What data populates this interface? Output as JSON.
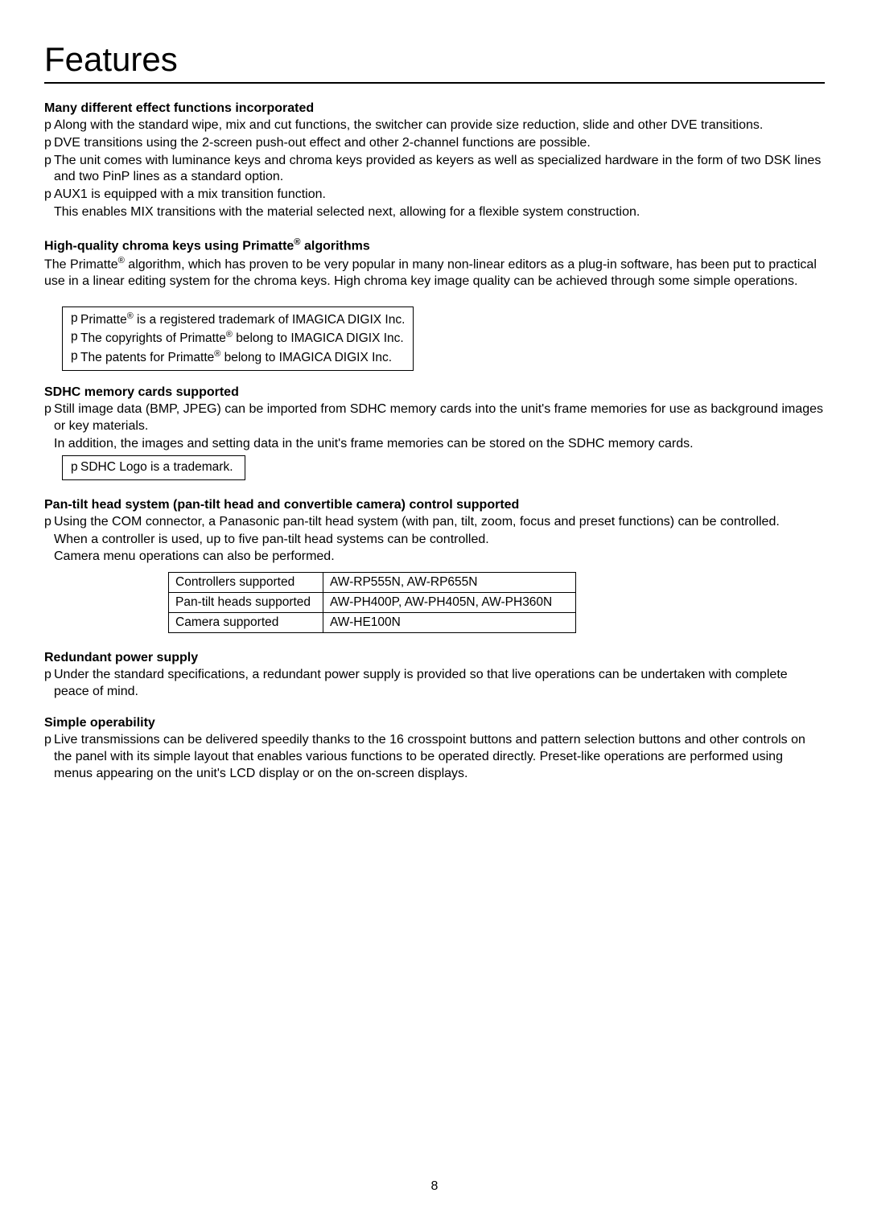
{
  "title": "Features",
  "pageNumber": "8",
  "sections": {
    "effects": {
      "heading": "Many different effect functions incorporated",
      "b1": "Along with the standard wipe, mix and cut functions, the switcher can provide size reduction, slide and other DVE transitions.",
      "b2": "DVE transitions using the 2-screen push-out effect and other 2-channel functions are possible.",
      "b3": "The unit comes with luminance keys and chroma keys provided as keyers as well as specialized hardware in the form of two DSK lines and two PinP lines as a standard option.",
      "b4": "AUX1 is equipped with a mix transition function.",
      "b4cont": "This enables MIX transitions with the material selected next, allowing for a flexible system construction."
    },
    "chroma": {
      "heading_pre": "High-quality chroma keys using Primatte",
      "heading_post": " algorithms",
      "para_pre": "The Primatte",
      "para_post": " algorithm, which has proven to be very popular in many non-linear editors as a plug-in software, has been put to practical use in a linear editing system for the chroma keys. High chroma key image quality can be achieved through some simple operations.",
      "box1_pre": "Primatte",
      "box1_post": " is a registered trademark of IMAGICA DIGIX Inc.",
      "box2_pre": "The copyrights of Primatte",
      "box2_post": " belong to IMAGICA DIGIX Inc.",
      "box3_pre": "The patents for Primatte",
      "box3_post": " belong to IMAGICA DIGIX Inc."
    },
    "sdhc": {
      "heading": "SDHC memory cards supported",
      "b1": "Still image data (BMP, JPEG) can be imported from SDHC memory cards into the unit's frame memories for use as background images or key materials.",
      "b1cont": "In addition, the images and setting data in the unit's frame memories can be stored on the SDHC memory cards.",
      "box1": "SDHC Logo is a trademark."
    },
    "pantilt": {
      "heading": "Pan-tilt head system (pan-tilt head and convertible camera) control supported",
      "b1": "Using the COM connector, a Panasonic pan-tilt head system (with pan, tilt, zoom, focus and preset functions) can be controlled.",
      "b1cont1": "When a controller is used, up to five pan-tilt head systems can be controlled.",
      "b1cont2": "Camera menu operations can also be performed.",
      "table": {
        "r1c1": "Controllers supported",
        "r1c2": "AW-RP555N, AW-RP655N",
        "r2c1": "Pan-tilt heads supported",
        "r2c2": "AW-PH400P, AW-PH405N, AW-PH360N",
        "r3c1": "Camera supported",
        "r3c2": "AW-HE100N"
      }
    },
    "power": {
      "heading": "Redundant power supply",
      "b1": "Under the standard specifications, a redundant power supply is provided so that live operations can be undertaken with complete peace of mind."
    },
    "simple": {
      "heading": "Simple operability",
      "b1": "Live transmissions can be delivered speedily thanks to the 16 crosspoint buttons and pattern selection buttons and other controls on the panel with its simple layout that enables various functions to be operated directly. Preset-like operations are performed using menus appearing on the unit's LCD display or on the on-screen displays."
    }
  }
}
